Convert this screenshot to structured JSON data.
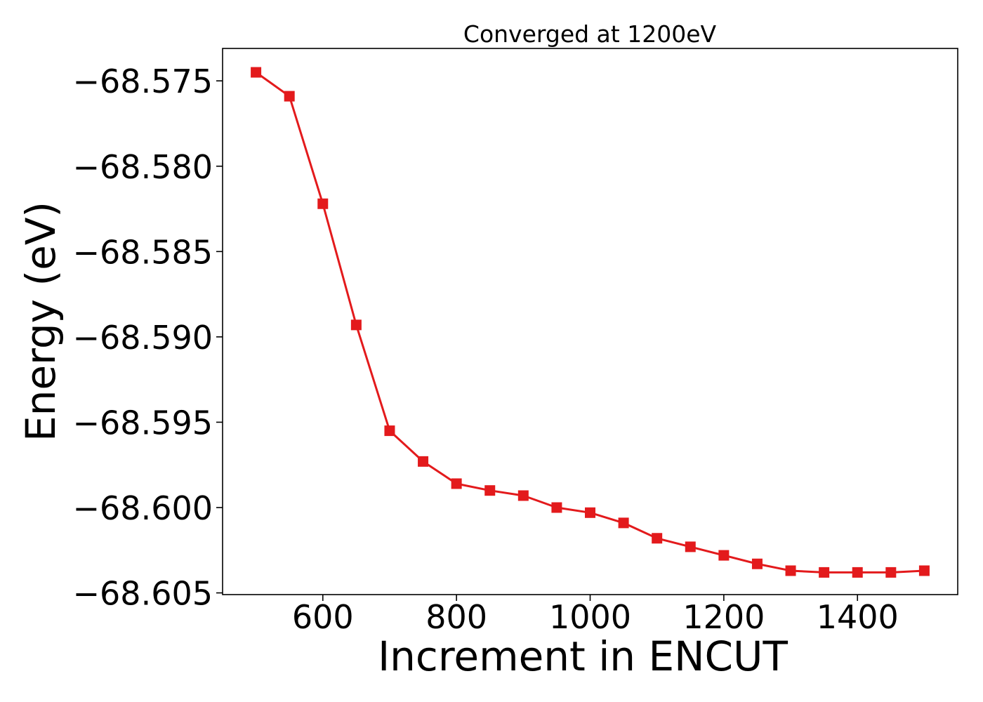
{
  "chart_data": {
    "type": "line",
    "title": "Converged at 1200eV",
    "xlabel": "Increment in ENCUT",
    "ylabel": "Energy (eV)",
    "xlim": [
      450,
      1550
    ],
    "ylim": [
      -68.6051,
      -68.5731
    ],
    "xticks": [
      600,
      800,
      1000,
      1200,
      1400
    ],
    "xtick_labels": [
      "600",
      "800",
      "1000",
      "1200",
      "1400"
    ],
    "yticks": [
      -68.575,
      -68.58,
      -68.585,
      -68.59,
      -68.595,
      -68.6,
      -68.605
    ],
    "ytick_labels": [
      "−68.575",
      "−68.580",
      "−68.585",
      "−68.590",
      "−68.595",
      "−68.600",
      "−68.605"
    ],
    "grid": false,
    "legend": "none",
    "series": [
      {
        "color": "#e31a1c",
        "marker": "square",
        "x": [
          500,
          550,
          600,
          650,
          700,
          750,
          800,
          850,
          900,
          950,
          1000,
          1050,
          1100,
          1150,
          1200,
          1250,
          1300,
          1350,
          1400,
          1450,
          1500
        ],
        "y": [
          -68.5745,
          -68.5759,
          -68.5822,
          -68.5893,
          -68.5955,
          -68.5973,
          -68.5986,
          -68.599,
          -68.5993,
          -68.6,
          -68.6003,
          -68.6009,
          -68.6018,
          -68.6023,
          -68.6028,
          -68.6033,
          -68.6037,
          -68.6038,
          -68.6038,
          -68.6038,
          -68.6037
        ]
      }
    ]
  }
}
